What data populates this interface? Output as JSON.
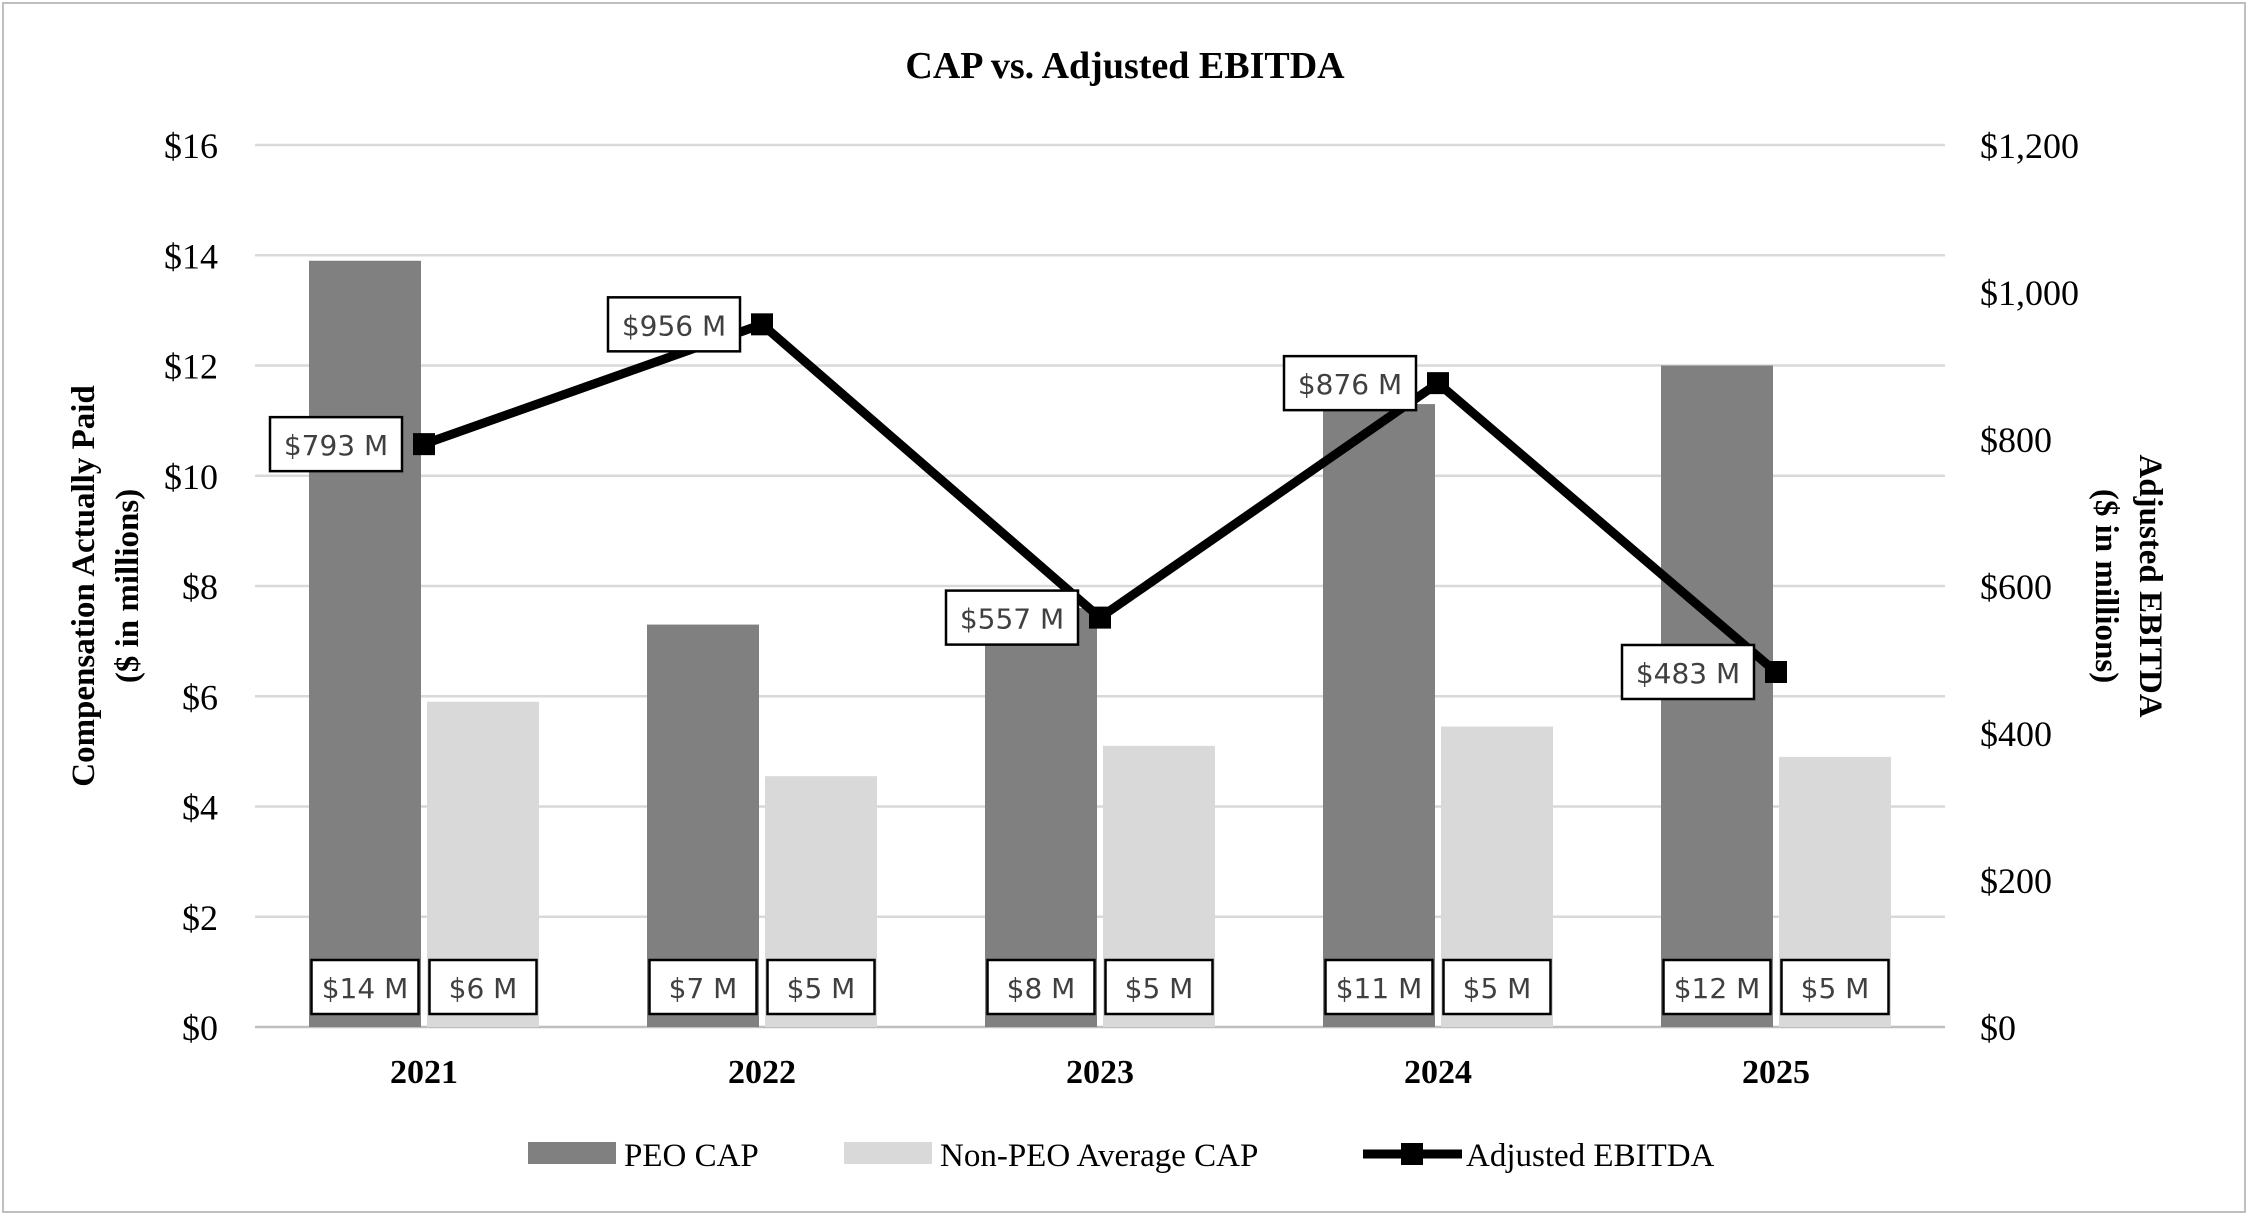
{
  "chart_data": {
    "type": "bar",
    "title": "CAP vs. Adjusted EBITDA",
    "categories": [
      "2021",
      "2022",
      "2023",
      "2024",
      "2025"
    ],
    "ylabel_left": [
      "Compensation Actually Paid",
      "($ in millions)"
    ],
    "ylabel_right": [
      "Adjusted EBITDA",
      "($ in millions)"
    ],
    "ylim_left": [
      0,
      16
    ],
    "ylim_right": [
      0,
      1200
    ],
    "yticks_left": [
      "$0",
      "$2",
      "$4",
      "$6",
      "$8",
      "$10",
      "$12",
      "$14",
      "$16"
    ],
    "yticks_right": [
      "$0",
      "$200",
      "$400",
      "$600",
      "$800",
      "$1,000",
      "$1,200"
    ],
    "grid": true,
    "legend_position": "bottom",
    "series": [
      {
        "name": "PEO CAP",
        "kind": "bar",
        "axis": "left",
        "color": "#808080",
        "values": [
          13.9,
          7.3,
          7.6,
          11.3,
          12.0
        ],
        "labels": [
          "$14 M",
          "$7 M",
          "$8 M",
          "$11 M",
          "$12 M"
        ]
      },
      {
        "name": "Non-PEO Average CAP",
        "kind": "bar",
        "axis": "left",
        "color": "#d9d9d9",
        "values": [
          5.9,
          4.55,
          5.1,
          5.45,
          4.9
        ],
        "labels": [
          "$6 M",
          "$5 M",
          "$5 M",
          "$5 M",
          "$5 M"
        ]
      },
      {
        "name": "Adjusted EBITDA",
        "kind": "line",
        "axis": "right",
        "color": "#000000",
        "values": [
          793,
          956,
          557,
          876,
          483
        ],
        "labels": [
          "$793 M",
          "$956 M",
          "$557 M",
          "$876 M",
          "$483 M"
        ]
      }
    ]
  }
}
